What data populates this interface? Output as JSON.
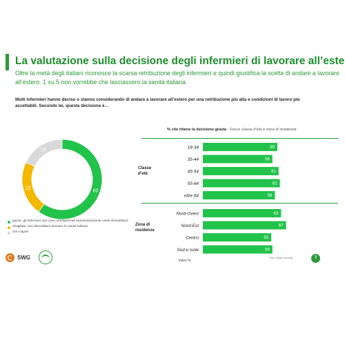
{
  "header": {
    "title": "La valutazione sulla decisione degli infermieri di lavorare all’estero",
    "subtitle": "Oltre la metà degli italiani riconosce la scarsa retribuzione degli infermieri e quindi giustifica la scelta di andare a lavorare all’estero. 1 su 5 non vorrebbe che lasciassero la sanità italiana."
  },
  "question": "Molti infermieri hanno deciso o stanno considerando di andare a lavorare all’estero per una retribuzione più alta e condizioni di lavoro più accettabili. Secondo lei, questa decisione è…",
  "right_header": {
    "bold": "% che ritiene la decisione giusta",
    "italic": " - Focus classe d’età e zona di residenza"
  },
  "footer": {
    "brand": "SWG",
    "note": "Valori %.",
    "rights": "Tutti i diritti riservati",
    "page": "7"
  },
  "colors": {
    "accent": "#2e9a3a",
    "green": "#22c34a",
    "yellow": "#f5b800",
    "grey": "#d9d9d9"
  },
  "chart_data": [
    {
      "type": "pie",
      "donut": true,
      "slices": [
        {
          "label": "giusta, gli infermieri non sono ricompensati economicamente come dovrebbero",
          "value": 60,
          "color": "#22c34a"
        },
        {
          "label": "sbagliata, non dovrebbero lasciare la sanità italiana",
          "value": 22,
          "color": "#f5b800"
        },
        {
          "label": "Non saprei",
          "value": 18,
          "color": "#d9d9d9"
        }
      ]
    },
    {
      "type": "bar",
      "orientation": "horizontal",
      "groups": [
        {
          "label": "Classe d’età",
          "categories": [
            "18-34",
            "35-44",
            "45-54",
            "55-64",
            "oltre 64"
          ],
          "values": [
            60,
            56,
            61,
            62,
            58
          ]
        },
        {
          "label": "Zona di residenza",
          "categories": [
            "Nord-Ovest",
            "Nord-Est",
            "Centro",
            "Sud e isole"
          ],
          "values": [
            63,
            67,
            55,
            56
          ]
        }
      ],
      "xlim": [
        0,
        100
      ]
    }
  ]
}
